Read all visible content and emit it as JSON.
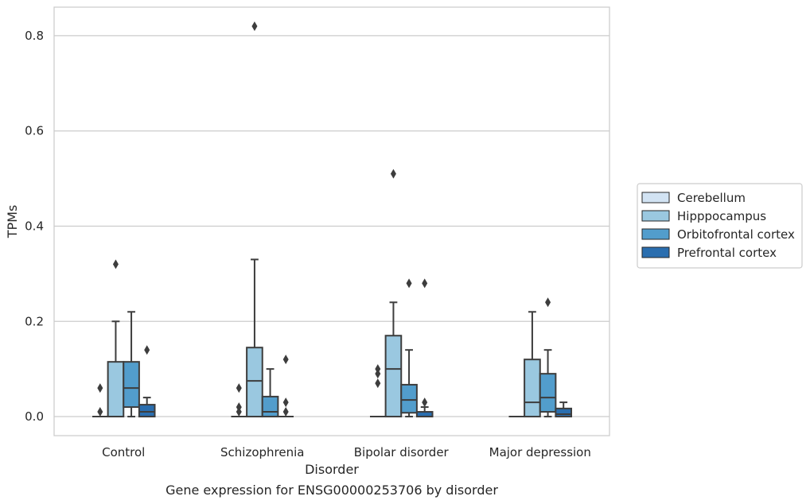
{
  "chart_data": {
    "type": "boxplot",
    "caption": "Gene expression for ENSG00000253706 by disorder",
    "xlabel": "Disorder",
    "ylabel": "TPMs",
    "ylim": [
      -0.04,
      0.86
    ],
    "yticks": [
      0.0,
      0.2,
      0.4,
      0.6,
      0.8
    ],
    "ytick_labels": [
      "0.0",
      "0.2",
      "0.4",
      "0.6",
      "0.8"
    ],
    "grid": true,
    "legend_position": "right",
    "categories": [
      "Control",
      "Schizophrenia",
      "Bipolar disorder",
      "Major depression"
    ],
    "series": [
      {
        "name": "Cerebellum",
        "color": "#d2e3f3",
        "boxes": [
          {
            "min": 0,
            "q1": 0,
            "median": 0,
            "q3": 0,
            "max": 0,
            "outliers": [
              0.06,
              0.01
            ]
          },
          {
            "min": 0,
            "q1": 0,
            "median": 0,
            "q3": 0,
            "max": 0,
            "outliers": [
              0.06,
              0.02,
              0.01
            ]
          },
          {
            "min": 0,
            "q1": 0,
            "median": 0,
            "q3": 0,
            "max": 0,
            "outliers": [
              0.1,
              0.09,
              0.07
            ]
          },
          {
            "min": 0,
            "q1": 0,
            "median": 0,
            "q3": 0,
            "max": 0,
            "outliers": []
          }
        ]
      },
      {
        "name": "Hipppocampus",
        "color": "#9ac8e0",
        "boxes": [
          {
            "min": 0,
            "q1": 0,
            "median": 0,
            "q3": 0.115,
            "max": 0.2,
            "outliers": [
              0.32
            ]
          },
          {
            "min": 0,
            "q1": 0,
            "median": 0.075,
            "q3": 0.145,
            "max": 0.33,
            "outliers": [
              0.82
            ]
          },
          {
            "min": 0,
            "q1": 0,
            "median": 0.1,
            "q3": 0.17,
            "max": 0.24,
            "outliers": [
              0.51
            ]
          },
          {
            "min": 0,
            "q1": 0,
            "median": 0.03,
            "q3": 0.12,
            "max": 0.22,
            "outliers": []
          }
        ]
      },
      {
        "name": "Orbitofrontal cortex",
        "color": "#529dcc",
        "boxes": [
          {
            "min": 0,
            "q1": 0.02,
            "median": 0.06,
            "q3": 0.115,
            "max": 0.22,
            "outliers": []
          },
          {
            "min": 0,
            "q1": 0,
            "median": 0.01,
            "q3": 0.042,
            "max": 0.1,
            "outliers": []
          },
          {
            "min": 0,
            "q1": 0.008,
            "median": 0.035,
            "q3": 0.067,
            "max": 0.14,
            "outliers": [
              0.28
            ]
          },
          {
            "min": 0,
            "q1": 0.01,
            "median": 0.04,
            "q3": 0.09,
            "max": 0.14,
            "outliers": [
              0.24
            ]
          }
        ]
      },
      {
        "name": "Prefrontal cortex",
        "color": "#2a6eaf",
        "boxes": [
          {
            "min": 0,
            "q1": 0,
            "median": 0.01,
            "q3": 0.025,
            "max": 0.04,
            "outliers": [
              0.14
            ]
          },
          {
            "min": 0,
            "q1": 0,
            "median": 0,
            "q3": 0,
            "max": 0,
            "outliers": [
              0.12,
              0.03,
              0.01
            ]
          },
          {
            "min": 0,
            "q1": 0,
            "median": 0,
            "q3": 0.01,
            "max": 0.02,
            "outliers": [
              0.28,
              0.03
            ]
          },
          {
            "min": 0,
            "q1": 0,
            "median": 0.005,
            "q3": 0.017,
            "max": 0.03,
            "outliers": []
          }
        ]
      }
    ]
  }
}
